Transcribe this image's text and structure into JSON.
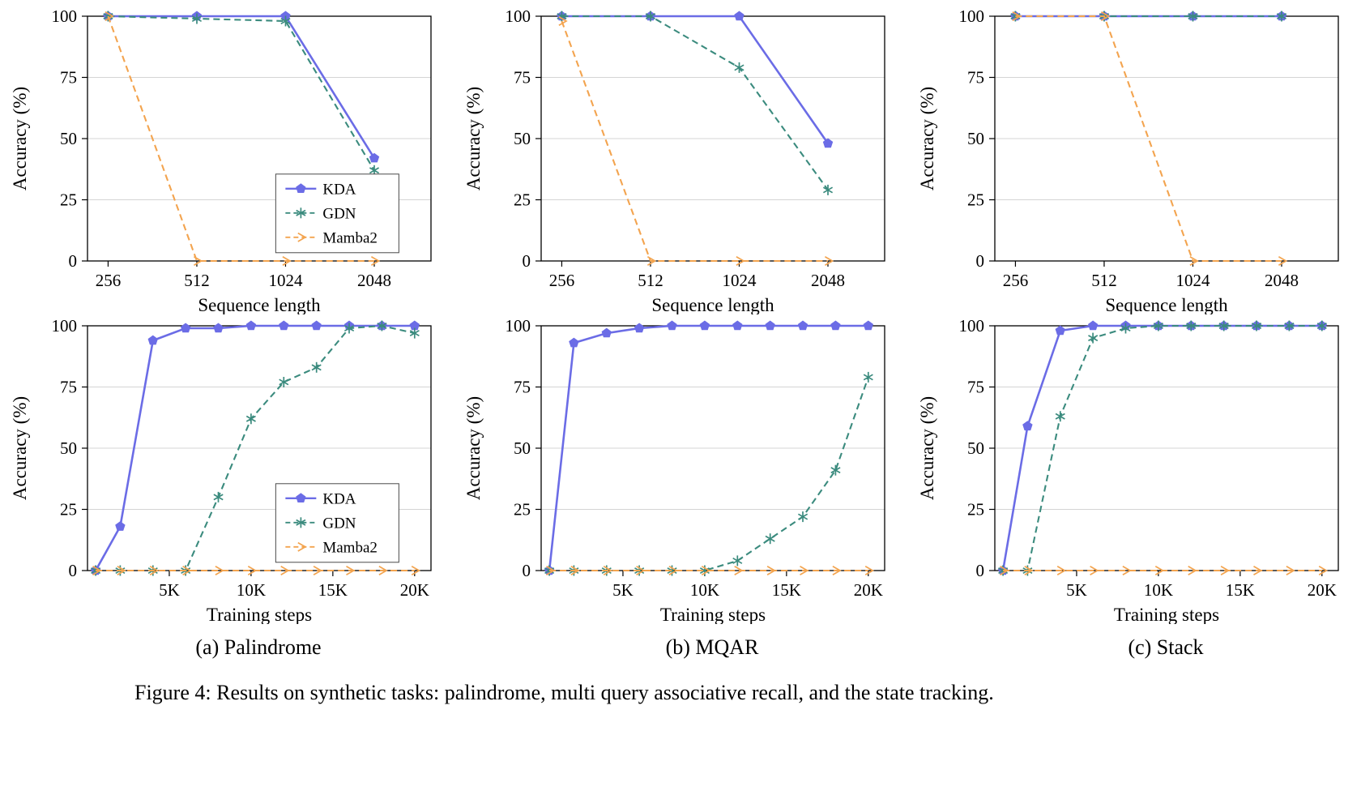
{
  "figure_caption": "Figure 4: Results on synthetic tasks: palindrome, multi query associative recall, and the state tracking.",
  "captions": {
    "a": "(a) Palindrome",
    "b": "(b) MQAR",
    "c": "(c) Stack"
  },
  "colors": {
    "kda": "#6b6ce6",
    "gdn": "#3b8b7e",
    "mamba2": "#f3a44f",
    "grid": "#d4d4d4",
    "frame": "#000000"
  },
  "chart_data": [
    {
      "panel": "palindrome-accuracy-vs-sequence-length",
      "type": "line",
      "xlabel": "Sequence length",
      "ylabel": "Accuracy (%)",
      "x_type": "category",
      "categories": [
        "256",
        "512",
        "1024",
        "2048"
      ],
      "ylim": [
        0,
        100
      ],
      "yticks": [
        0,
        25,
        50,
        75,
        100
      ],
      "grid": true,
      "legend": true,
      "legend_position": "inside lower-right-center",
      "series": [
        {
          "name": "KDA",
          "color": "#6b6ce6",
          "line": "solid",
          "marker": "pentagon",
          "values": [
            100,
            100,
            100,
            42
          ]
        },
        {
          "name": "GDN",
          "color": "#3b8b7e",
          "line": "dashed",
          "marker": "star",
          "values": [
            100,
            99,
            98,
            37
          ]
        },
        {
          "name": "Mamba2",
          "color": "#f3a44f",
          "line": "dashed",
          "marker": "arrow",
          "values": [
            100,
            0,
            0,
            0
          ]
        }
      ]
    },
    {
      "panel": "mqar-accuracy-vs-sequence-length",
      "type": "line",
      "xlabel": "Sequence length",
      "ylabel": "Accuracy (%)",
      "x_type": "category",
      "categories": [
        "256",
        "512",
        "1024",
        "2048"
      ],
      "ylim": [
        0,
        100
      ],
      "yticks": [
        0,
        25,
        50,
        75,
        100
      ],
      "grid": true,
      "legend": false,
      "series": [
        {
          "name": "KDA",
          "color": "#6b6ce6",
          "line": "solid",
          "marker": "pentagon",
          "values": [
            100,
            100,
            100,
            48
          ]
        },
        {
          "name": "GDN",
          "color": "#3b8b7e",
          "line": "dashed",
          "marker": "star",
          "values": [
            100,
            100,
            79,
            29
          ]
        },
        {
          "name": "Mamba2",
          "color": "#f3a44f",
          "line": "dashed",
          "marker": "arrow",
          "values": [
            98,
            0,
            0,
            0
          ]
        }
      ]
    },
    {
      "panel": "stack-accuracy-vs-sequence-length",
      "type": "line",
      "xlabel": "Sequence length",
      "ylabel": "Accuracy (%)",
      "x_type": "category",
      "categories": [
        "256",
        "512",
        "1024",
        "2048"
      ],
      "ylim": [
        0,
        100
      ],
      "yticks": [
        0,
        25,
        50,
        75,
        100
      ],
      "grid": true,
      "legend": false,
      "series": [
        {
          "name": "KDA",
          "color": "#6b6ce6",
          "line": "solid",
          "marker": "pentagon",
          "values": [
            100,
            100,
            100,
            100
          ]
        },
        {
          "name": "GDN",
          "color": "#3b8b7e",
          "line": "dashed",
          "marker": "star",
          "values": [
            100,
            100,
            100,
            100
          ]
        },
        {
          "name": "Mamba2",
          "color": "#f3a44f",
          "line": "dashed",
          "marker": "arrow",
          "values": [
            100,
            100,
            0,
            0
          ]
        }
      ]
    },
    {
      "panel": "palindrome-accuracy-vs-training-steps",
      "type": "line",
      "xlabel": "Training steps",
      "ylabel": "Accuracy (%)",
      "x_type": "numeric",
      "x": [
        500,
        2000,
        4000,
        6000,
        8000,
        10000,
        12000,
        14000,
        16000,
        18000,
        20000
      ],
      "xlim": [
        0,
        21000
      ],
      "xticks": [
        5000,
        10000,
        15000,
        20000
      ],
      "xtick_labels": [
        "5K",
        "10K",
        "15K",
        "20K"
      ],
      "ylim": [
        0,
        100
      ],
      "yticks": [
        0,
        25,
        50,
        75,
        100
      ],
      "grid": true,
      "legend": true,
      "legend_position": "inside lower-right-center",
      "series": [
        {
          "name": "KDA",
          "color": "#6b6ce6",
          "line": "solid",
          "marker": "pentagon",
          "values": [
            0,
            18,
            94,
            99,
            99,
            100,
            100,
            100,
            100,
            100,
            100
          ]
        },
        {
          "name": "GDN",
          "color": "#3b8b7e",
          "line": "dashed",
          "marker": "star",
          "values": [
            0,
            0,
            0,
            0,
            30,
            62,
            77,
            83,
            99,
            100,
            97
          ]
        },
        {
          "name": "Mamba2",
          "color": "#f3a44f",
          "line": "dashed",
          "marker": "arrow",
          "values": [
            0,
            0,
            0,
            0,
            0,
            0,
            0,
            0,
            0,
            0,
            0
          ]
        }
      ]
    },
    {
      "panel": "mqar-accuracy-vs-training-steps",
      "type": "line",
      "xlabel": "Training steps",
      "ylabel": "Accuracy (%)",
      "x_type": "numeric",
      "x": [
        500,
        2000,
        4000,
        6000,
        8000,
        10000,
        12000,
        14000,
        16000,
        18000,
        20000
      ],
      "xlim": [
        0,
        21000
      ],
      "xticks": [
        5000,
        10000,
        15000,
        20000
      ],
      "xtick_labels": [
        "5K",
        "10K",
        "15K",
        "20K"
      ],
      "ylim": [
        0,
        100
      ],
      "yticks": [
        0,
        25,
        50,
        75,
        100
      ],
      "grid": true,
      "legend": false,
      "series": [
        {
          "name": "KDA",
          "color": "#6b6ce6",
          "line": "solid",
          "marker": "pentagon",
          "values": [
            0,
            93,
            97,
            99,
            100,
            100,
            100,
            100,
            100,
            100,
            100
          ]
        },
        {
          "name": "GDN",
          "color": "#3b8b7e",
          "line": "dashed",
          "marker": "star",
          "values": [
            0,
            0,
            0,
            0,
            0,
            0,
            4,
            13,
            22,
            41,
            79
          ]
        },
        {
          "name": "Mamba2",
          "color": "#f3a44f",
          "line": "dashed",
          "marker": "arrow",
          "values": [
            0,
            0,
            0,
            0,
            0,
            0,
            0,
            0,
            0,
            0,
            0
          ]
        }
      ]
    },
    {
      "panel": "stack-accuracy-vs-training-steps",
      "type": "line",
      "xlabel": "Training steps",
      "ylabel": "Accuracy (%)",
      "x_type": "numeric",
      "x": [
        500,
        2000,
        4000,
        6000,
        8000,
        10000,
        12000,
        14000,
        16000,
        18000,
        20000
      ],
      "xlim": [
        0,
        21000
      ],
      "xticks": [
        5000,
        10000,
        15000,
        20000
      ],
      "xtick_labels": [
        "5K",
        "10K",
        "15K",
        "20K"
      ],
      "ylim": [
        0,
        100
      ],
      "yticks": [
        0,
        25,
        50,
        75,
        100
      ],
      "grid": true,
      "legend": false,
      "series": [
        {
          "name": "KDA",
          "color": "#6b6ce6",
          "line": "solid",
          "marker": "pentagon",
          "values": [
            0,
            59,
            98,
            100,
            100,
            100,
            100,
            100,
            100,
            100,
            100
          ]
        },
        {
          "name": "GDN",
          "color": "#3b8b7e",
          "line": "dashed",
          "marker": "star",
          "values": [
            0,
            0,
            63,
            95,
            99,
            100,
            100,
            100,
            100,
            100,
            100
          ]
        },
        {
          "name": "Mamba2",
          "color": "#f3a44f",
          "line": "dashed",
          "marker": "arrow",
          "values": [
            0,
            0,
            0,
            0,
            0,
            0,
            0,
            0,
            0,
            0,
            0
          ]
        }
      ]
    }
  ]
}
